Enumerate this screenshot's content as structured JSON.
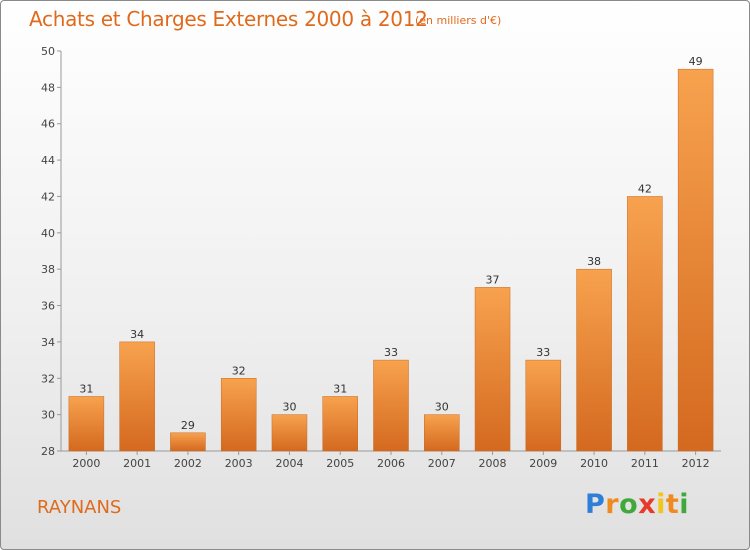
{
  "header": {
    "title": "Achats et Charges Externes 2000 à 2012",
    "subtitle": "(en milliers d'€)"
  },
  "footer": {
    "commune": "RAYNANS",
    "logo_text": "Proxiti"
  },
  "colors": {
    "accent": "#e06a1c",
    "bar_top": "#f7a24e",
    "bar_bottom": "#d4691f"
  },
  "chart_data": {
    "type": "bar",
    "title": "Achats et Charges Externes 2000 à 2012",
    "subtitle": "(en milliers d'€)",
    "categories": [
      "2000",
      "2001",
      "2002",
      "2003",
      "2004",
      "2005",
      "2006",
      "2007",
      "2008",
      "2009",
      "2010",
      "2011",
      "2012"
    ],
    "values": [
      31,
      34,
      29,
      32,
      30,
      31,
      33,
      30,
      37,
      33,
      38,
      42,
      49
    ],
    "data_labels": [
      "31",
      "34",
      "29",
      "32",
      "30",
      "31",
      "33",
      "30",
      "37",
      "33",
      "38",
      "42",
      "49"
    ],
    "xlabel": "",
    "ylabel": "",
    "ylim": [
      28,
      50
    ],
    "yticks": [
      28,
      30,
      32,
      34,
      36,
      38,
      40,
      42,
      44,
      46,
      48,
      50
    ],
    "grid": false,
    "legend": "none"
  }
}
